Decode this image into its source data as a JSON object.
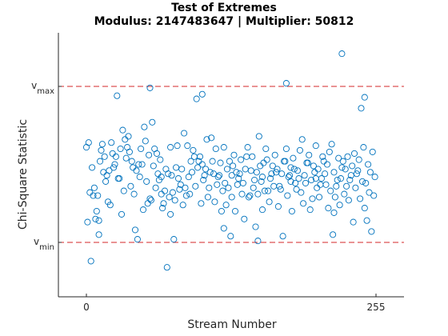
{
  "chart_data": {
    "type": "scatter",
    "title": "Test of Extremes",
    "subtitle": "Modulus: 2147483647 | Multiplier: 50812",
    "xlabel": "Stream Number",
    "ylabel": "Chi-Square Statistic",
    "x_ticks": [
      0,
      255
    ],
    "y_ticks": [
      {
        "label": "v",
        "sub": "max"
      },
      {
        "label": "v",
        "sub": "min"
      }
    ],
    "series_color": "#0072BD",
    "reference_line_color": "#D62728",
    "grid": false,
    "legend": "none",
    "points": [
      [
        0,
        0.61
      ],
      [
        2,
        0.64
      ],
      [
        4,
        -0.12
      ],
      [
        6,
        0.3
      ],
      [
        8,
        0.15
      ],
      [
        10,
        0.3
      ],
      [
        12,
        0.52
      ],
      [
        14,
        0.63
      ],
      [
        16,
        0.55
      ],
      [
        18,
        0.43
      ],
      [
        20,
        0.46
      ],
      [
        22,
        0.64
      ],
      [
        24,
        0.48
      ],
      [
        26,
        0.55
      ],
      [
        28,
        0.41
      ],
      [
        30,
        0.6
      ],
      [
        32,
        0.72
      ],
      [
        34,
        0.66
      ],
      [
        36,
        0.61
      ],
      [
        38,
        0.58
      ],
      [
        40,
        0.52
      ],
      [
        42,
        0.31
      ],
      [
        44,
        0.46
      ],
      [
        46,
        0.5
      ],
      [
        48,
        0.6
      ],
      [
        50,
        0.21
      ],
      [
        52,
        0.65
      ],
      [
        54,
        0.25
      ],
      [
        56,
        0.28
      ],
      [
        58,
        0.77
      ],
      [
        60,
        0.6
      ],
      [
        62,
        0.57
      ],
      [
        64,
        0.4
      ],
      [
        66,
        0.31
      ],
      [
        68,
        0.25
      ],
      [
        70,
        0.47
      ],
      [
        72,
        0.44
      ],
      [
        74,
        0.61
      ],
      [
        76,
        0.32
      ],
      [
        78,
        0.27
      ],
      [
        80,
        0.62
      ],
      [
        82,
        0.34
      ],
      [
        84,
        0.47
      ],
      [
        86,
        0.7
      ],
      [
        88,
        0.3
      ],
      [
        90,
        0.42
      ],
      [
        92,
        0.52
      ],
      [
        94,
        0.59
      ],
      [
        96,
        0.36
      ],
      [
        98,
        0.48
      ],
      [
        100,
        0.55
      ],
      [
        102,
        0.5
      ],
      [
        104,
        0.43
      ],
      [
        106,
        0.66
      ],
      [
        108,
        0.35
      ],
      [
        110,
        0.67
      ],
      [
        112,
        0.44
      ],
      [
        114,
        0.6
      ],
      [
        116,
        0.42
      ],
      [
        118,
        0.51
      ],
      [
        120,
        0.33
      ],
      [
        122,
        0.38
      ],
      [
        124,
        0.47
      ],
      [
        126,
        0.52
      ],
      [
        128,
        0.29
      ],
      [
        130,
        0.56
      ],
      [
        132,
        0.45
      ],
      [
        134,
        0.41
      ],
      [
        136,
        0.53
      ],
      [
        138,
        0.38
      ],
      [
        140,
        0.47
      ],
      [
        142,
        0.61
      ],
      [
        144,
        0.3
      ],
      [
        146,
        0.55
      ],
      [
        148,
        0.4
      ],
      [
        150,
        0.45
      ],
      [
        152,
        0.68
      ],
      [
        154,
        0.39
      ],
      [
        156,
        0.51
      ],
      [
        158,
        0.6
      ],
      [
        160,
        0.33
      ],
      [
        162,
        0.41
      ],
      [
        164,
        0.49
      ],
      [
        166,
        0.56
      ],
      [
        168,
        0.47
      ],
      [
        170,
        0.36
      ],
      [
        172,
        0.44
      ],
      [
        174,
        0.52
      ],
      [
        176,
        0.6
      ],
      [
        178,
        0.42
      ],
      [
        180,
        0.48
      ],
      [
        182,
        0.54
      ],
      [
        184,
        0.38
      ],
      [
        186,
        0.46
      ],
      [
        188,
        0.59
      ],
      [
        190,
        0.66
      ],
      [
        192,
        0.43
      ],
      [
        194,
        0.51
      ],
      [
        196,
        0.56
      ],
      [
        198,
        0.4
      ],
      [
        200,
        0.49
      ],
      [
        202,
        0.62
      ],
      [
        204,
        0.47
      ],
      [
        206,
        0.37
      ],
      [
        208,
        0.55
      ],
      [
        210,
        0.44
      ],
      [
        212,
        0.5
      ],
      [
        214,
        0.58
      ],
      [
        216,
        0.63
      ],
      [
        218,
        0.45
      ],
      [
        220,
        0.36
      ],
      [
        222,
        0.54
      ],
      [
        224,
        0.41
      ],
      [
        226,
        0.52
      ],
      [
        228,
        0.47
      ],
      [
        230,
        0.55
      ],
      [
        232,
        0.4
      ],
      [
        234,
        0.49
      ],
      [
        236,
        0.57
      ],
      [
        238,
        0.44
      ],
      [
        240,
        0.53
      ],
      [
        242,
        0.86
      ],
      [
        244,
        0.61
      ],
      [
        246,
        0.38
      ],
      [
        248,
        0.5
      ],
      [
        250,
        0.45
      ],
      [
        252,
        0.58
      ],
      [
        254,
        0.42
      ],
      [
        1,
        0.13
      ],
      [
        3,
        0.32
      ],
      [
        5,
        0.48
      ],
      [
        7,
        0.35
      ],
      [
        9,
        0.2
      ],
      [
        11,
        0.05
      ],
      [
        13,
        0.59
      ],
      [
        15,
        0.45
      ],
      [
        17,
        0.39
      ],
      [
        19,
        0.26
      ],
      [
        21,
        0.24
      ],
      [
        23,
        0.57
      ],
      [
        25,
        0.5
      ],
      [
        27,
        0.94
      ],
      [
        29,
        0.41
      ],
      [
        31,
        0.18
      ],
      [
        33,
        0.33
      ],
      [
        35,
        0.54
      ],
      [
        37,
        0.68
      ],
      [
        39,
        0.36
      ],
      [
        41,
        0.48
      ],
      [
        43,
        0.08
      ],
      [
        45,
        0.02
      ],
      [
        47,
        0.42
      ],
      [
        49,
        0.5
      ],
      [
        51,
        0.74
      ],
      [
        53,
        0.39
      ],
      [
        55,
        0.56
      ],
      [
        57,
        0.27
      ],
      [
        59,
        0.49
      ],
      [
        61,
        0.35
      ],
      [
        63,
        0.44
      ],
      [
        65,
        0.53
      ],
      [
        67,
        0.22
      ],
      [
        69,
        0.33
      ],
      [
        71,
        -0.16
      ],
      [
        73,
        0.29
      ],
      [
        75,
        0.43
      ],
      [
        77,
        0.02
      ],
      [
        79,
        0.48
      ],
      [
        81,
        0.41
      ],
      [
        83,
        0.37
      ],
      [
        85,
        0.24
      ],
      [
        87,
        0.35
      ],
      [
        89,
        0.62
      ],
      [
        91,
        0.31
      ],
      [
        93,
        0.45
      ],
      [
        95,
        0.55
      ],
      [
        97,
        0.92
      ],
      [
        99,
        0.52
      ],
      [
        101,
        0.25
      ],
      [
        103,
        0.4
      ],
      [
        105,
        0.47
      ],
      [
        107,
        0.29
      ],
      [
        109,
        0.45
      ],
      [
        111,
        0.52
      ],
      [
        113,
        0.26
      ],
      [
        115,
        0.37
      ],
      [
        117,
        0.43
      ],
      [
        119,
        0.2
      ],
      [
        121,
        0.61
      ],
      [
        123,
        0.24
      ],
      [
        125,
        0.35
      ],
      [
        127,
        0.04
      ],
      [
        129,
        0.49
      ],
      [
        131,
        0.2
      ],
      [
        133,
        0.37
      ],
      [
        135,
        0.44
      ],
      [
        137,
        0.31
      ],
      [
        139,
        0.15
      ],
      [
        141,
        0.55
      ],
      [
        143,
        0.29
      ],
      [
        145,
        0.46
      ],
      [
        147,
        0.35
      ],
      [
        149,
        0.1
      ],
      [
        151,
        0.31
      ],
      [
        153,
        0.49
      ],
      [
        155,
        0.42
      ],
      [
        157,
        0.33
      ],
      [
        159,
        0.53
      ],
      [
        161,
        0.26
      ],
      [
        163,
        0.44
      ],
      [
        165,
        0.36
      ],
      [
        167,
        0.45
      ],
      [
        169,
        0.23
      ],
      [
        171,
        0.34
      ],
      [
        173,
        0.04
      ],
      [
        175,
        0.52
      ],
      [
        177,
        0.3
      ],
      [
        179,
        0.43
      ],
      [
        181,
        0.2
      ],
      [
        183,
        0.47
      ],
      [
        185,
        0.34
      ],
      [
        187,
        0.41
      ],
      [
        189,
        0.32
      ],
      [
        191,
        0.25
      ],
      [
        193,
        0.38
      ],
      [
        195,
        0.51
      ],
      [
        197,
        0.21
      ],
      [
        199,
        0.28
      ],
      [
        201,
        0.45
      ],
      [
        203,
        0.35
      ],
      [
        205,
        0.29
      ],
      [
        207,
        0.41
      ],
      [
        209,
        0.52
      ],
      [
        211,
        0.37
      ],
      [
        213,
        0.22
      ],
      [
        215,
        0.33
      ],
      [
        217,
        0.05
      ],
      [
        219,
        0.29
      ],
      [
        221,
        0.4
      ],
      [
        223,
        0.24
      ],
      [
        225,
        0.48
      ],
      [
        227,
        0.31
      ],
      [
        229,
        0.36
      ],
      [
        231,
        0.27
      ],
      [
        233,
        0.43
      ],
      [
        235,
        0.13
      ],
      [
        237,
        0.35
      ],
      [
        239,
        0.46
      ],
      [
        241,
        0.28
      ],
      [
        243,
        0.39
      ],
      [
        245,
        0.22
      ],
      [
        247,
        0.14
      ],
      [
        249,
        0.32
      ],
      [
        251,
        0.07
      ],
      [
        253,
        0.3
      ],
      [
        56,
        0.99
      ],
      [
        102,
        0.95
      ],
      [
        121,
        0.09
      ],
      [
        151,
        0.01
      ],
      [
        176,
        1.02
      ],
      [
        180,
        0.39
      ],
      [
        202,
        0.41
      ],
      [
        218,
        0.19
      ],
      [
        225,
        1.21
      ],
      [
        245,
        0.93
      ],
      [
        11,
        0.14
      ],
      [
        66,
        0.42
      ],
      [
        74,
        0.18
      ],
      [
        128,
        0.43
      ],
      [
        155,
        0.21
      ]
    ]
  }
}
